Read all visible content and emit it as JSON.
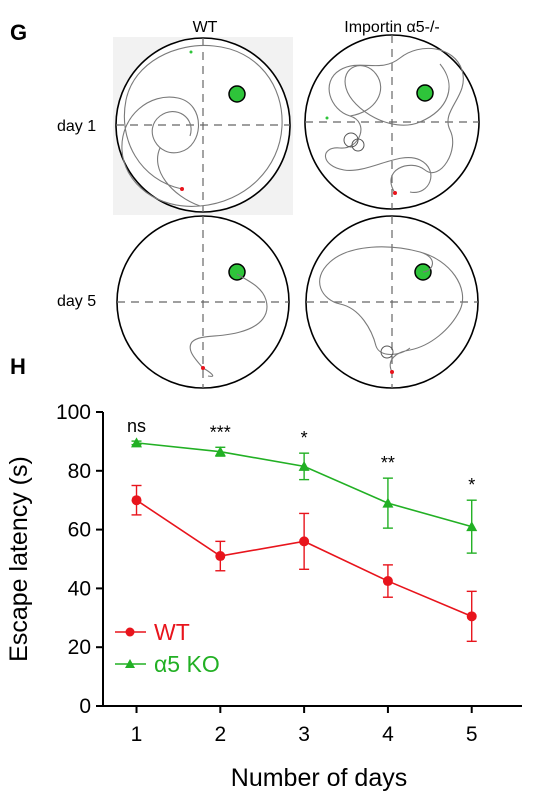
{
  "panel_g": {
    "letter": "G",
    "col_labels": [
      "WT",
      "Importin α5-/-"
    ],
    "row_labels": [
      "day 1",
      "day 5"
    ]
  },
  "panel_h": {
    "letter": "H"
  },
  "colors": {
    "wt": "#e8141c",
    "ko": "#22b024",
    "platform": "#2ec43a",
    "path": "#7a7a7a"
  },
  "chart_data": {
    "type": "line",
    "xlabel": "Number of days",
    "ylabel": "Escape latency (s)",
    "x": [
      1,
      2,
      3,
      4,
      5
    ],
    "xticks": [
      "1",
      "2",
      "3",
      "4",
      "5"
    ],
    "xlim": [
      0.6,
      5.6
    ],
    "ylim": [
      0,
      100
    ],
    "yticks": [
      "0",
      "20",
      "40",
      "60",
      "80",
      "100"
    ],
    "series": [
      {
        "name": "WT",
        "color": "#e8141c",
        "marker": "circle",
        "values": [
          70,
          51,
          56,
          42.5,
          30.5
        ],
        "errors": [
          5,
          5,
          9.5,
          5.5,
          8.5
        ]
      },
      {
        "name": "α5 KO",
        "color": "#22b024",
        "marker": "triangle",
        "values": [
          89.5,
          86.5,
          81.5,
          69,
          61
        ],
        "errors": [
          0.6,
          1.5,
          4.5,
          8.5,
          9
        ]
      }
    ],
    "significance": [
      "ns",
      "***",
      "*",
      "**",
      "*"
    ],
    "legend_position": "bottom-left"
  }
}
